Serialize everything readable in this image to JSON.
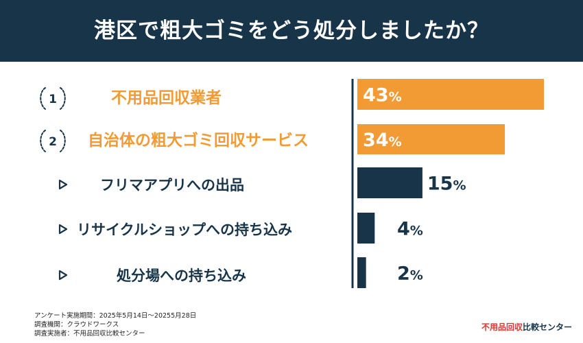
{
  "title": "港区で粗大ゴミをどう処分しましたか？",
  "colors": {
    "header": "#173449",
    "accent": "#F29A34",
    "dark": "#173449",
    "logo_red": "#E2342F"
  },
  "chart_data": {
    "type": "bar",
    "orientation": "horizontal",
    "categories": [
      "不用品回収業者",
      "自治体の粗大ゴミ回収サービス",
      "フリマアプリへの出品",
      "リサイクルショップへの持ち込み",
      "処分場への持ち込み"
    ],
    "values": [
      43,
      34,
      15,
      4,
      2
    ],
    "value_labels": [
      "43",
      "34",
      "15",
      "4",
      "2"
    ],
    "unit": "%",
    "ranks": [
      "1",
      "2"
    ],
    "xlim": [
      0,
      43
    ]
  },
  "footer": {
    "period": "アンケート実施期間：2025年5月14日〜20255月28日",
    "org": "調査機関：クラウドワークス",
    "implementer": "調査実施者：不用品回収比較センター"
  },
  "logo": {
    "red_part": "不用品回収",
    "dark_part": "比較センター"
  }
}
